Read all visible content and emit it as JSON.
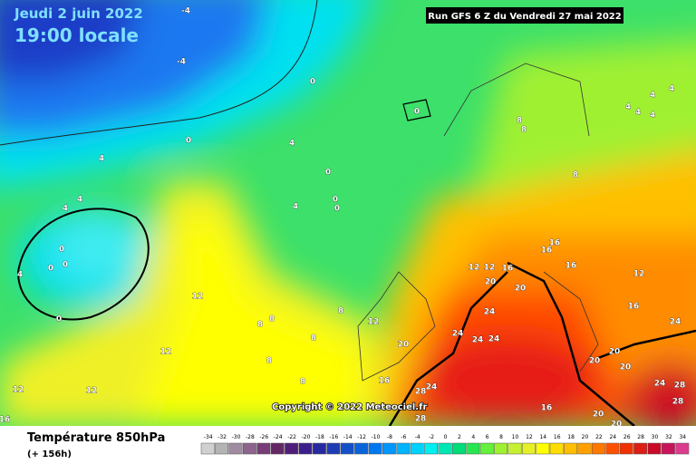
{
  "header": {
    "date": "Jeudi 2 juin 2022",
    "time": "19:00 locale",
    "run": "Run GFS 6 Z du Vendredi 27 mai 2022"
  },
  "copyright": "Copyright © 2022 Meteociel.fr",
  "footer": {
    "title": "Température 850hPa",
    "lead": "(+ 156h)"
  },
  "scale": {
    "values": [
      -34,
      -32,
      -30,
      -28,
      -26,
      -24,
      -22,
      -20,
      -18,
      -16,
      -14,
      -12,
      -10,
      -8,
      -6,
      -4,
      -2,
      0,
      2,
      4,
      6,
      8,
      10,
      12,
      14,
      16,
      18,
      20,
      22,
      24,
      26,
      28,
      30,
      32,
      34
    ],
    "colors": [
      "#d0d0d0",
      "#b4b4b4",
      "#a08ca0",
      "#8c648c",
      "#783c78",
      "#642864",
      "#501e78",
      "#3c1e8c",
      "#2828a0",
      "#1e3cb4",
      "#1450c8",
      "#0a64dc",
      "#0078f0",
      "#0096ff",
      "#00b4ff",
      "#00d2ff",
      "#00f0f0",
      "#00e6b4",
      "#00dc78",
      "#28e650",
      "#64f03c",
      "#a0f032",
      "#c8f032",
      "#e6f028",
      "#ffff00",
      "#ffdc00",
      "#ffbe00",
      "#ffa000",
      "#ff7800",
      "#ff5000",
      "#f03200",
      "#dc1e14",
      "#c80a28",
      "#c8145a",
      "#dc3c8c"
    ]
  },
  "contour_labels": [
    -4,
    -4,
    0,
    4,
    0,
    4,
    0,
    4,
    4,
    0,
    0,
    0,
    4,
    0,
    0,
    0,
    4,
    0,
    12,
    8,
    8,
    8,
    8,
    12,
    12,
    8,
    8,
    12,
    12,
    16,
    16,
    16,
    12,
    12,
    20,
    20,
    24,
    24,
    24,
    24,
    20,
    16,
    24,
    28,
    28,
    20,
    20,
    16,
    20,
    20,
    20,
    24,
    28,
    28,
    24,
    16,
    12,
    8,
    8,
    8,
    4,
    4,
    4,
    4,
    4,
    16,
    16
  ]
}
